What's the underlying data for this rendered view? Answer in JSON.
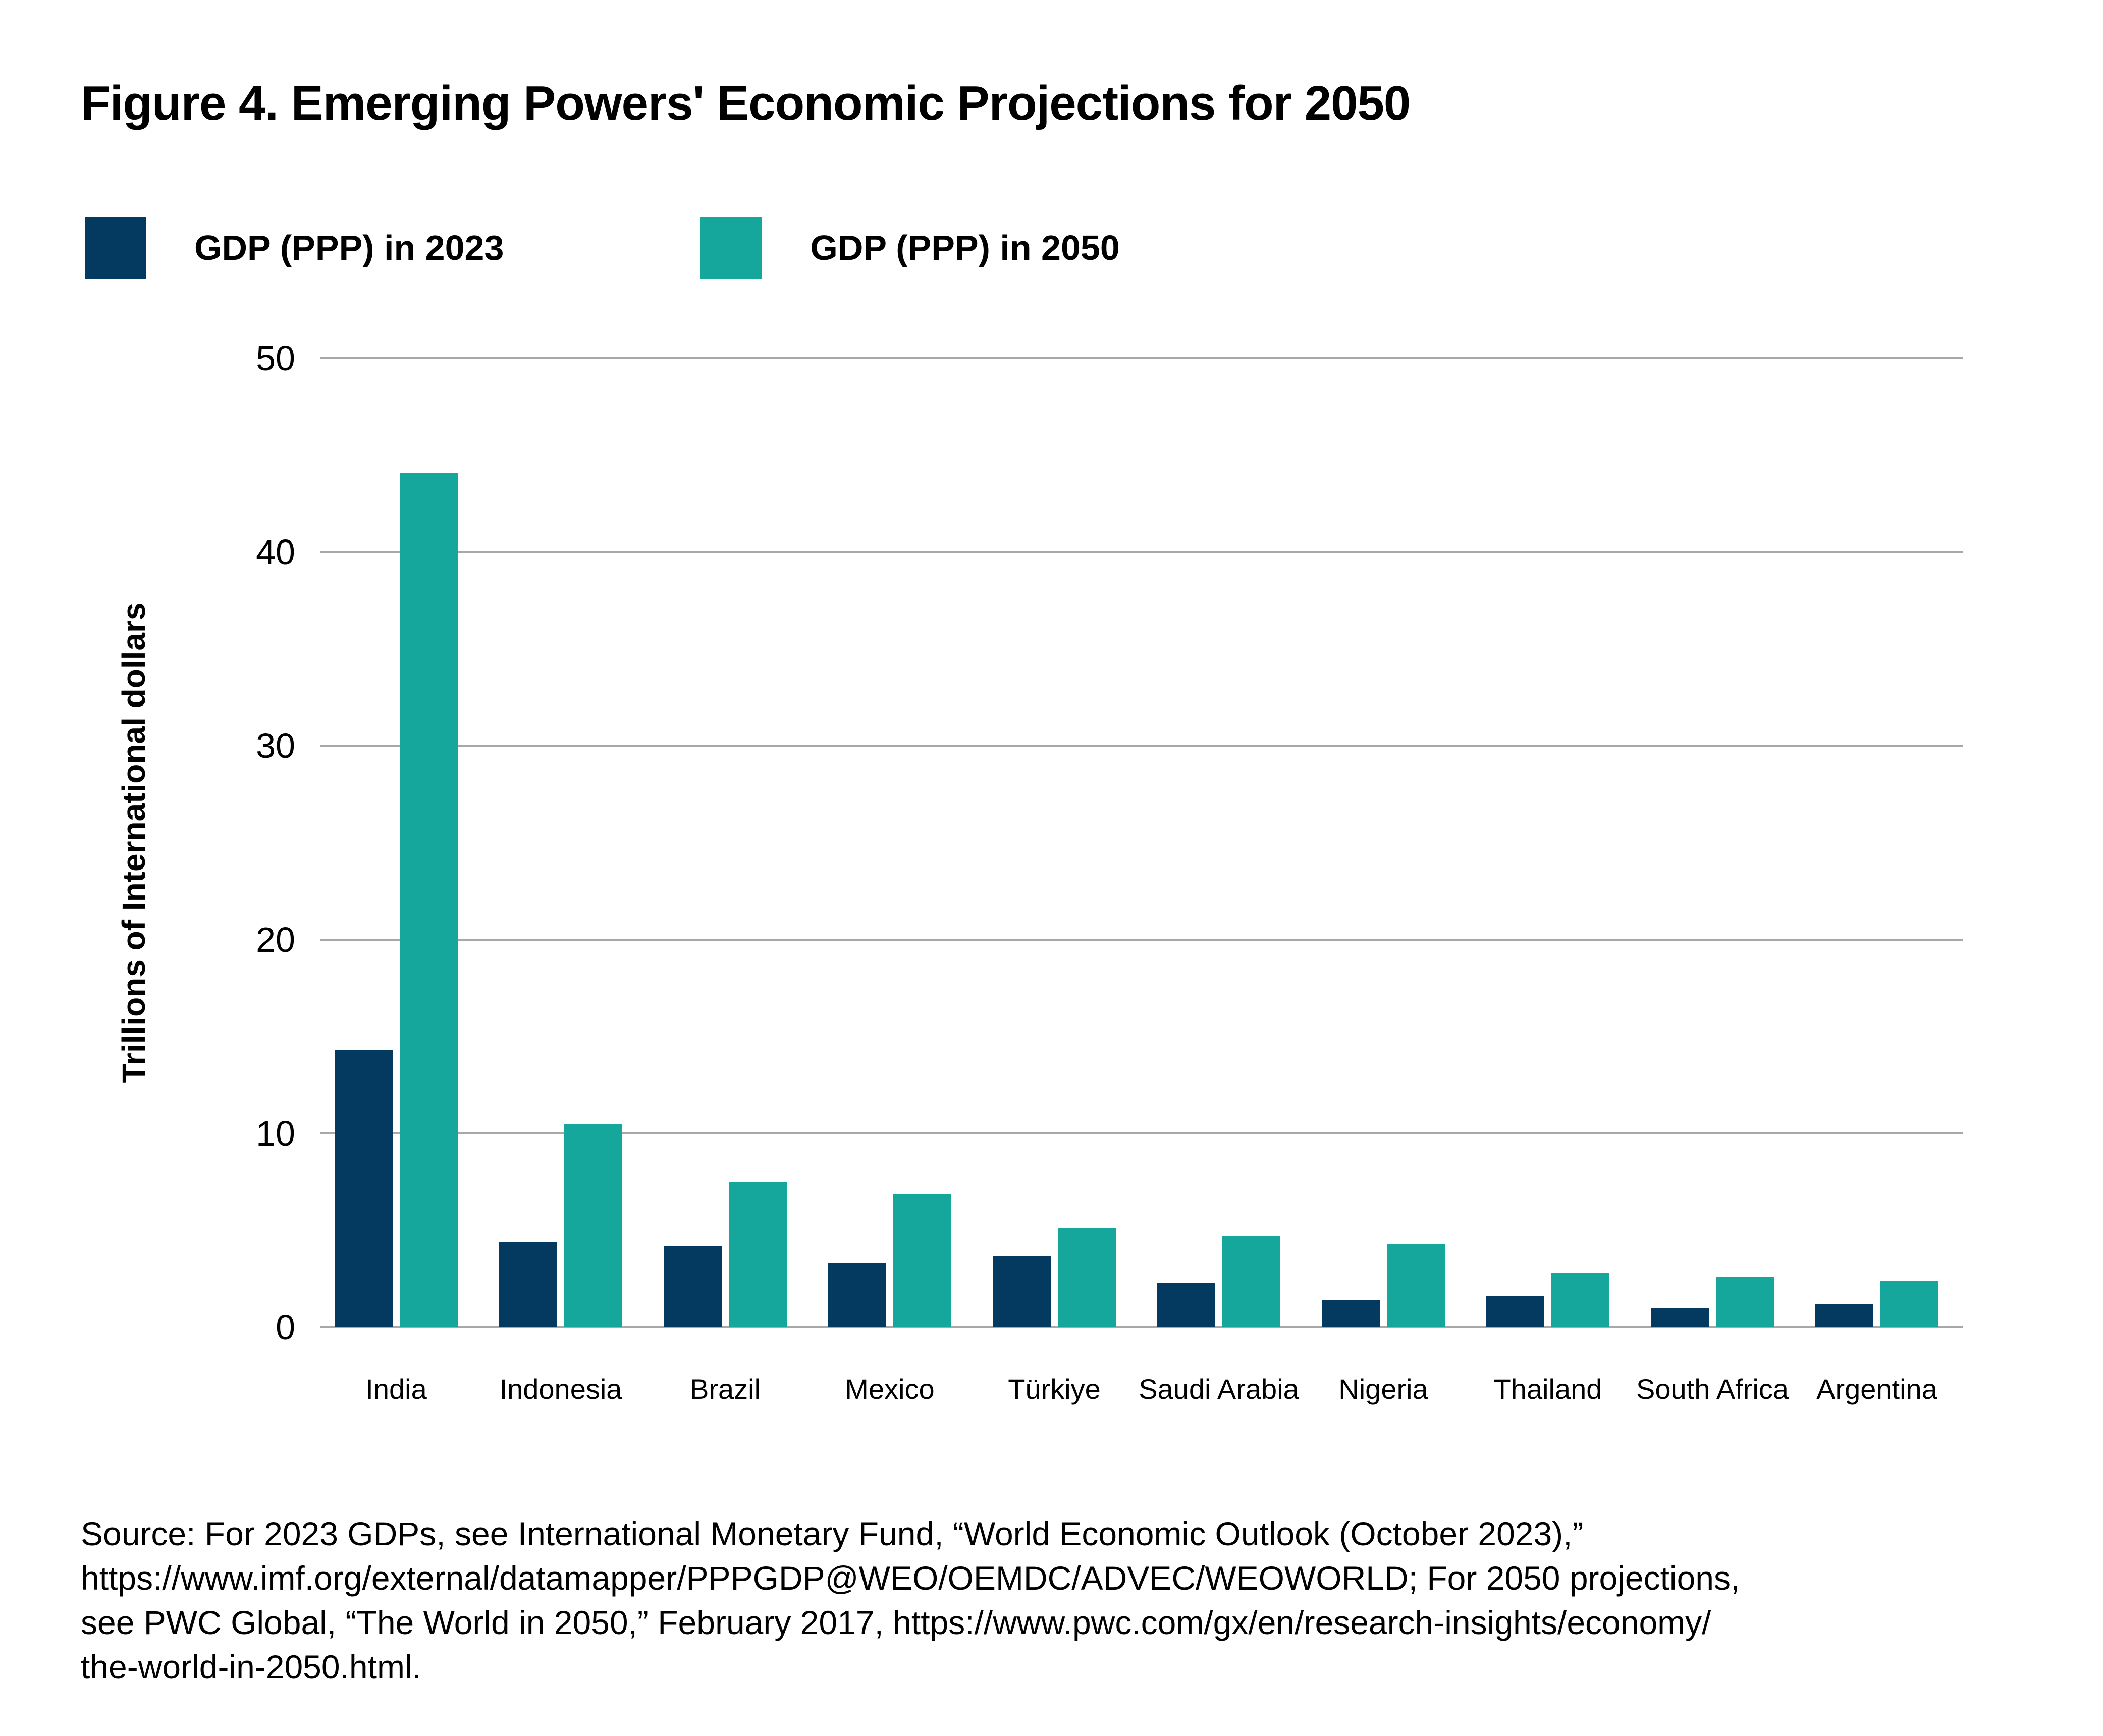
{
  "figure": {
    "background_color": "#FFFFFF",
    "text_color": "#000000"
  },
  "source": {
    "lines": [
      "Source: For 2023 GDPs, see International Monetary Fund, “World Economic Outlook (October 2023),”",
      "https://www.imf.org/external/datamapper/PPPGDP@WEO/OEMDC/ADVEC/WEOWORLD; For 2050 projections,",
      "see PWC Global, “The World in 2050,” February 2017, https://www.pwc.com/gx/en/research-insights/economy/",
      "the-world-in-2050.html."
    ]
  },
  "chart_data": {
    "type": "bar",
    "title": "Figure 4. Emerging Powers' Economic Projections for 2050",
    "categories": [
      "India",
      "Indonesia",
      "Brazil",
      "Mexico",
      "Türkiye",
      "Saudi Arabia",
      "Nigeria",
      "Thailand",
      "South Africa",
      "Argentina"
    ],
    "series": [
      {
        "name": "GDP (PPP) in 2023",
        "color": "#053A60",
        "values": [
          14.3,
          4.4,
          4.2,
          3.3,
          3.7,
          2.3,
          1.4,
          1.6,
          1.0,
          1.2
        ]
      },
      {
        "name": "GDP (PPP) in 2050",
        "color": "#16A79C",
        "values": [
          44.1,
          10.5,
          7.5,
          6.9,
          5.1,
          4.7,
          4.3,
          2.8,
          2.6,
          2.4
        ]
      }
    ],
    "xlabel": "",
    "ylabel": "Trillions of International dollars",
    "ylim": [
      0,
      50
    ],
    "yticks": [
      0,
      10,
      20,
      30,
      40,
      50
    ],
    "grid": "horizontal",
    "grid_color": "#A8A8A8",
    "legend_position": "top-left"
  }
}
